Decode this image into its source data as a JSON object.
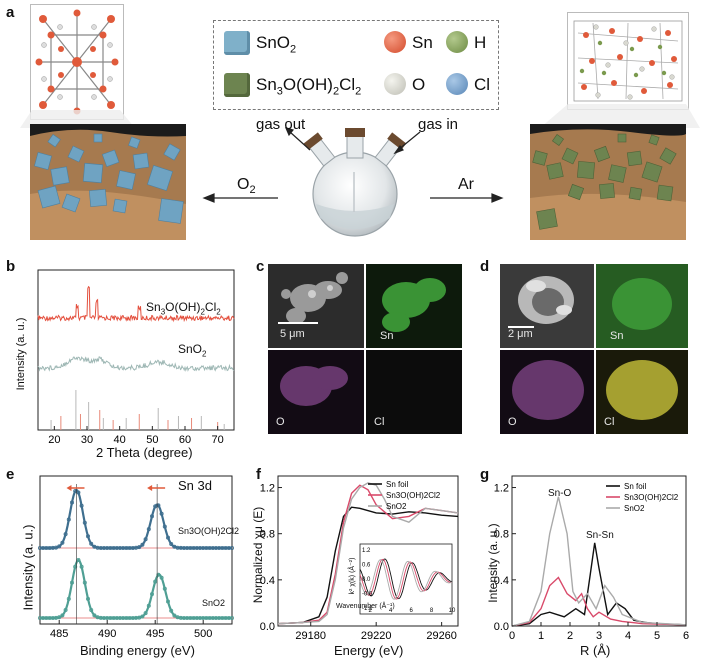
{
  "panels": {
    "a": "a",
    "b": "b",
    "c": "c",
    "d": "d",
    "e": "e",
    "f": "f",
    "g": "g"
  },
  "legend": {
    "sno2": "SnO",
    "sno2_sub": "2",
    "sn3o": "Sn",
    "sn3o_p1": "3",
    "sn3o_p2": "O(OH)",
    "sn3o_p3": "2",
    "sn3o_p4": "Cl",
    "sn3o_p5": "2",
    "sn": "Sn",
    "h": "H",
    "o": "O",
    "cl": "Cl",
    "colors": {
      "sn": "#e05a3a",
      "h": "#7b9a4e",
      "o": "#cfcfc8",
      "cl": "#6f9cc8",
      "sno2_cube": "#7fb0c9",
      "sn3o_cube": "#6d8450"
    }
  },
  "scheme": {
    "gas_out": "gas out",
    "gas_in": "gas in",
    "o2": "O",
    "o2_sub": "2",
    "ar": "Ar"
  },
  "panel_b": {
    "ylabel": "Intensity (a. u.)",
    "xlabel": "2 Theta (degree)",
    "label_top": "Sn",
    "label_top_sub1": "3",
    "label_top_mid": "O(OH)",
    "label_top_sub2": "2",
    "label_top_end": "Cl",
    "label_top_sub3": "2",
    "label_bot": "SnO",
    "label_bot_sub": "2",
    "xticks": [
      "20",
      "30",
      "40",
      "50",
      "60",
      "70"
    ]
  },
  "panel_c": {
    "scale": "5 μm",
    "sn": "Sn",
    "o": "O",
    "cl": "Cl"
  },
  "panel_d": {
    "scale": "2 μm",
    "sn": "Sn",
    "o": "O",
    "cl": "Cl"
  },
  "panel_e": {
    "title": "Sn 3d",
    "ylabel": "Intensity (a. u.)",
    "xlabel": "Binding energy (eV)",
    "label_top": "Sn3O(OH)2Cl2",
    "label_bot": "SnO2",
    "xticks": [
      "485",
      "490",
      "495",
      "500"
    ]
  },
  "panel_f": {
    "ylabel": "Normalized χμ (E)",
    "xlabel": "Energy (eV)",
    "legend": [
      "Sn foil",
      "Sn3O(OH)2Cl2",
      "SnO2"
    ],
    "xticks": [
      "29180",
      "29220",
      "29260"
    ],
    "yticks": [
      "0.0",
      "0.4",
      "0.8",
      "1.2"
    ],
    "inset_ylabel": "k² χ(k) (Å⁻²)",
    "inset_xlabel": "Wavenumber (Å⁻¹)",
    "inset_xticks": [
      "2",
      "4",
      "6",
      "8",
      "10"
    ],
    "inset_yticks": [
      "1.2",
      "0.6",
      "0.0",
      "-0.6",
      "-1.2"
    ]
  },
  "panel_g": {
    "ylabel": "Intensity (a. u.)",
    "xlabel": "R (Å)",
    "legend": [
      "Sn foil",
      "Sn3O(OH)2Cl2",
      "SnO2"
    ],
    "ann1": "Sn-O",
    "ann2": "Sn-Sn",
    "xticks": [
      "0",
      "1",
      "2",
      "3",
      "4",
      "5",
      "6"
    ],
    "yticks": [
      "0.0",
      "0.4",
      "0.8",
      "1.2"
    ]
  },
  "chart_data": [
    {
      "type": "line",
      "xlabel": "Energy (eV)",
      "ylabel": "Normalized χμ (E)",
      "xlim": [
        29160,
        29270
      ],
      "ylim": [
        0,
        1.3
      ],
      "legend_position": "top-right",
      "series": [
        {
          "name": "Sn foil",
          "color": "#111111",
          "x": [
            29160,
            29175,
            29185,
            29190,
            29195,
            29200,
            29205,
            29210,
            29220,
            29230,
            29240,
            29250,
            29260,
            29270
          ],
          "y": [
            0.02,
            0.03,
            0.08,
            0.25,
            0.65,
            0.95,
            1.03,
            1.02,
            0.98,
            0.97,
            0.99,
            0.98,
            0.96,
            0.95
          ]
        },
        {
          "name": "Sn3O(OH)2Cl2",
          "color": "#d94a6a",
          "x": [
            29160,
            29175,
            29185,
            29190,
            29195,
            29200,
            29205,
            29210,
            29215,
            29220,
            29230,
            29240,
            29250,
            29260,
            29270
          ],
          "y": [
            0.02,
            0.03,
            0.05,
            0.12,
            0.45,
            0.9,
            1.15,
            1.22,
            1.18,
            1.05,
            0.93,
            0.95,
            1.02,
            1.0,
            0.98
          ]
        },
        {
          "name": "SnO2",
          "color": "#aaaaaa",
          "x": [
            29160,
            29175,
            29185,
            29190,
            29195,
            29200,
            29205,
            29210,
            29215,
            29220,
            29225,
            29230,
            29240,
            29250,
            29260,
            29270
          ],
          "y": [
            0.02,
            0.03,
            0.04,
            0.1,
            0.4,
            0.85,
            1.1,
            1.2,
            1.24,
            1.22,
            1.1,
            0.95,
            0.9,
            1.02,
            1.0,
            0.98
          ]
        }
      ]
    },
    {
      "type": "line",
      "xlabel": "R (Å)",
      "ylabel": "Intensity (a. u.)",
      "xlim": [
        0,
        6
      ],
      "ylim": [
        0,
        1.3
      ],
      "legend_position": "top-right",
      "series": [
        {
          "name": "Sn foil",
          "color": "#111111",
          "x": [
            0,
            0.6,
            1.0,
            1.3,
            1.8,
            2.2,
            2.5,
            2.7,
            2.85,
            3.0,
            3.3,
            3.6,
            3.9,
            4.2,
            4.6,
            5.0,
            6.0
          ],
          "y": [
            0,
            0.02,
            0.1,
            0.12,
            0.08,
            0.15,
            0.1,
            0.45,
            0.72,
            0.5,
            0.1,
            0.2,
            0.15,
            0.05,
            0.03,
            0.02,
            0.01
          ]
        },
        {
          "name": "Sn3O(OH)2Cl2",
          "color": "#d94a6a",
          "x": [
            0,
            0.6,
            1.0,
            1.3,
            1.6,
            1.9,
            2.2,
            2.4,
            2.6,
            2.8,
            3.0,
            3.4,
            3.8,
            4.5,
            6.0
          ],
          "y": [
            0,
            0.03,
            0.15,
            0.35,
            0.42,
            0.28,
            0.22,
            0.28,
            0.15,
            0.08,
            0.12,
            0.06,
            0.04,
            0.02,
            0.01
          ]
        },
        {
          "name": "SnO2",
          "color": "#aaaaaa",
          "x": [
            0,
            0.6,
            1.0,
            1.3,
            1.6,
            1.9,
            2.1,
            2.3,
            2.6,
            2.9,
            3.2,
            3.5,
            3.8,
            4.5,
            6.0
          ],
          "y": [
            0,
            0.04,
            0.3,
            0.8,
            1.12,
            0.8,
            0.3,
            0.2,
            0.28,
            0.15,
            0.35,
            0.25,
            0.1,
            0.03,
            0.01
          ]
        }
      ]
    },
    {
      "type": "line",
      "xlabel": "Binding energy (eV)",
      "ylabel": "Intensity (a. u.)",
      "xlim": [
        483,
        503
      ],
      "series": [
        {
          "name": "Sn3O(OH)2Cl2",
          "color": "#3f6f8f",
          "peaks": [
            486.8,
            495.2
          ]
        },
        {
          "name": "SnO2",
          "color": "#4f9f94",
          "peaks": [
            487.0,
            495.4
          ]
        }
      ]
    },
    {
      "type": "line",
      "xlabel": "2 Theta (degree)",
      "ylabel": "Intensity (a. u.)",
      "xlim": [
        15,
        75
      ],
      "series": [
        {
          "name": "Sn3O(OH)2Cl2",
          "color": "#e4503e"
        },
        {
          "name": "SnO2",
          "color": "#9fb8b5"
        }
      ]
    }
  ]
}
